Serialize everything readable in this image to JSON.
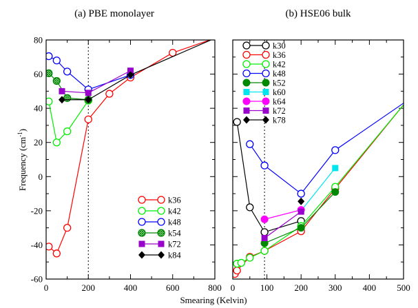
{
  "chart_data": [
    {
      "type": "line",
      "title": "(a) PBE monolayer",
      "xlabel": "",
      "ylabel": "Frequency (cm",
      "ylabel_sup": "-1",
      "ylabel_close": ")",
      "xlim": [
        0,
        800
      ],
      "ylim": [
        -60,
        80
      ],
      "xticks": [
        "0",
        "200",
        "400",
        "600",
        "800"
      ],
      "yticks": [
        "-60",
        "-40",
        "-20",
        "0",
        "20",
        "40",
        "60",
        "80"
      ],
      "vline": 200,
      "legend_position": "bottom-right",
      "series": [
        {
          "name": "k36",
          "color": "#ff0000",
          "marker": "circle-open",
          "x": [
            12.5,
            50,
            100,
            200,
            300,
            400,
            600,
            800
          ],
          "y": [
            -41,
            -45,
            -30,
            33.5,
            48.5,
            58,
            72.5,
            81
          ]
        },
        {
          "name": "k42",
          "color": "#00ee00",
          "marker": "circle-open",
          "x": [
            12.5,
            50,
            100,
            200
          ],
          "y": [
            44,
            20,
            26.5,
            44.5
          ]
        },
        {
          "name": "k48",
          "color": "#0000ff",
          "marker": "circle-open",
          "x": [
            12.5,
            50,
            100,
            200,
            400
          ],
          "y": [
            70.5,
            68,
            61.5,
            51,
            59.5
          ]
        },
        {
          "name": "k54",
          "color": "#008800",
          "marker": "circle-hatched",
          "x": [
            12.5,
            50,
            100,
            200
          ],
          "y": [
            60.5,
            56,
            46,
            45
          ]
        },
        {
          "name": "k72",
          "color": "#9900cc",
          "marker": "square-filled",
          "x": [
            75,
            200,
            400
          ],
          "y": [
            50,
            49,
            62
          ]
        },
        {
          "name": "k84",
          "color": "#000000",
          "marker": "diamond-filled",
          "x": [
            75,
            200,
            400,
            800
          ],
          "y": [
            45,
            45,
            59.5,
            81
          ]
        }
      ]
    },
    {
      "type": "line",
      "title": "(b) HSE06 bulk",
      "xlabel": "",
      "ylabel": "",
      "xlim": [
        0,
        500
      ],
      "ylim": [
        -60,
        80
      ],
      "xticks": [
        "0",
        "100",
        "200",
        "300",
        "400",
        "500"
      ],
      "yticks": [],
      "vline": 93,
      "legend_position": "top-left",
      "series": [
        {
          "name": "k30",
          "color": "#000000",
          "marker": "circle-open",
          "x": [
            12.5,
            50,
            93,
            200
          ],
          "y": [
            32,
            -18,
            -32.5,
            -26
          ]
        },
        {
          "name": "k36",
          "color": "#ff0000",
          "marker": "circle-open",
          "x": [
            6,
            12.5,
            50,
            93,
            200,
            300,
            500
          ],
          "y": [
            -57,
            -55,
            -47,
            -43.5,
            -32,
            -7,
            42
          ]
        },
        {
          "name": "k42",
          "color": "#00ee00",
          "marker": "circle-open",
          "x": [
            12.5,
            25,
            50,
            93,
            200,
            300,
            500
          ],
          "y": [
            -51,
            -50.5,
            -47.5,
            -43.5,
            -29,
            -6,
            42
          ]
        },
        {
          "name": "k48",
          "color": "#0000ff",
          "marker": "circle-open",
          "x": [
            50,
            93,
            200,
            300,
            500
          ],
          "y": [
            19,
            6.5,
            -10,
            15.5,
            43
          ]
        },
        {
          "name": "k52",
          "color": "#008800",
          "marker": "circle-filled",
          "x": [
            93,
            200,
            300
          ],
          "y": [
            -39,
            -30,
            -9
          ]
        },
        {
          "name": "k60",
          "color": "#00e5ee",
          "marker": "square-filled",
          "x": [
            200,
            300
          ],
          "y": [
            -20,
            5
          ]
        },
        {
          "name": "k64",
          "color": "#ff00ff",
          "marker": "circle-filled",
          "x": [
            93,
            200
          ],
          "y": [
            -25,
            -19.5
          ]
        },
        {
          "name": "k72",
          "color": "#9900cc",
          "marker": "square-filled",
          "x": [
            93,
            200
          ],
          "y": [
            -36,
            -20.5
          ]
        },
        {
          "name": "k78",
          "color": "#000000",
          "marker": "diamond-filled",
          "x": [
            200
          ],
          "y": [
            -14.5
          ]
        }
      ]
    }
  ],
  "shared_xlabel": "Smearing (Kelvin)"
}
